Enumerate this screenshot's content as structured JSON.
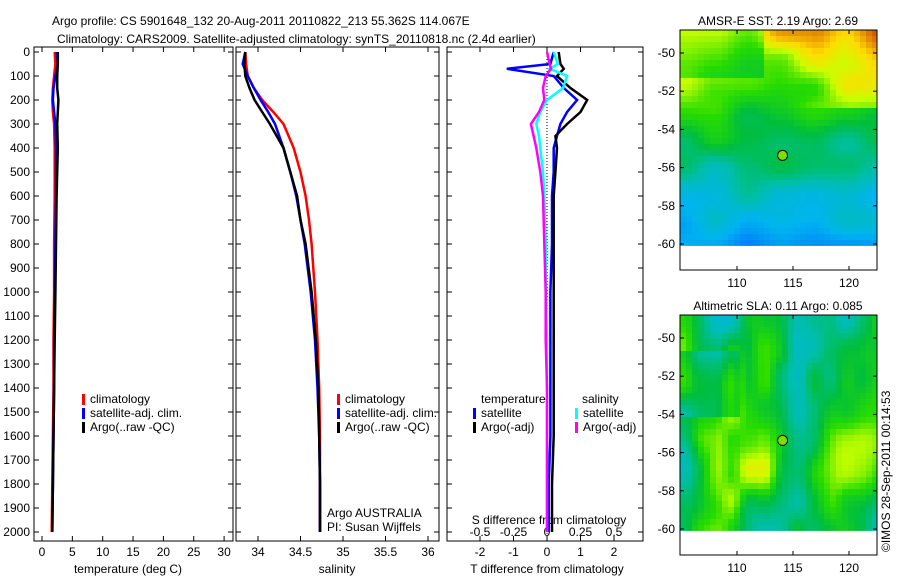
{
  "title": {
    "line1": "Argo profile: CS 5901648_132 20-Aug-2011 20110822_213 55.362S 114.067E",
    "line2": "Climatology: CARS2009. Satellite-adjusted climatology: synTS_20110818.nc (2.4d earlier)"
  },
  "stamp": "©IMOS 28-Sep-2011 00:14:53",
  "colors": {
    "climatology": "#ff0000",
    "satellite": "#0000ff",
    "argo": "#000000",
    "sal_satellite": "#00ffff",
    "sal_argo": "#ff00ff"
  },
  "chart_data": [
    {
      "type": "line",
      "name": "temperature-panel",
      "xlabel": "temperature (deg C)",
      "xlim": [
        -1.5,
        31.5
      ],
      "xticks": [
        "0",
        "5",
        "10",
        "15",
        "20",
        "25",
        "30"
      ],
      "ylim": [
        2040,
        0
      ],
      "yticks": [
        "0",
        "100",
        "200",
        "300",
        "400",
        "500",
        "600",
        "700",
        "800",
        "900",
        "1000",
        "1100",
        "1200",
        "1300",
        "1400",
        "1500",
        "1600",
        "1700",
        "1800",
        "1900",
        "2000"
      ],
      "legend": [
        "climatology",
        "satellite-adj. clim.",
        "Argo(..raw -QC)"
      ],
      "depth": [
        0,
        50,
        100,
        150,
        200,
        250,
        300,
        400,
        500,
        600,
        800,
        1000,
        1200,
        1400,
        1600,
        1800,
        2000
      ],
      "series": [
        {
          "name": "climatology",
          "color": "#ff0000",
          "values": [
            2.1,
            2.2,
            2.0,
            1.8,
            1.7,
            1.8,
            2.0,
            2.1,
            2.1,
            2.1,
            2.0,
            2.0,
            1.9,
            1.9,
            1.8,
            1.7,
            1.6
          ]
        },
        {
          "name": "satellite-adj. clim.",
          "color": "#0000ff",
          "values": [
            2.4,
            2.6,
            2.2,
            1.9,
            1.8,
            2.0,
            2.2,
            2.3,
            2.3,
            2.3,
            2.2,
            2.1,
            2.0,
            2.0,
            1.9,
            1.8,
            1.7
          ]
        },
        {
          "name": "Argo",
          "color": "#000000",
          "values": [
            2.6,
            2.6,
            2.5,
            2.5,
            2.7,
            2.6,
            2.5,
            2.6,
            2.5,
            2.4,
            2.3,
            2.2,
            2.1,
            2.0,
            1.9,
            1.8,
            1.7
          ]
        }
      ]
    },
    {
      "type": "line",
      "name": "salinity-panel",
      "xlabel": "salinity",
      "xlim": [
        33.8,
        36.1
      ],
      "xticks": [
        "34",
        "34.5",
        "35",
        "35.5",
        "36"
      ],
      "ylim": [
        2040,
        0
      ],
      "legend": [
        "climatology",
        "satellite-adj. clim.",
        "Argo(..raw -QC)"
      ],
      "annotation": [
        "Argo AUSTRALIA",
        "PI: Susan Wijffels"
      ],
      "depth": [
        0,
        50,
        100,
        150,
        200,
        250,
        300,
        400,
        500,
        600,
        700,
        800,
        1000,
        1200,
        1400,
        1600,
        1800,
        2000
      ],
      "series": [
        {
          "name": "climatology",
          "color": "#ff0000",
          "values": [
            33.85,
            33.86,
            33.88,
            33.95,
            34.05,
            34.18,
            34.3,
            34.42,
            34.5,
            34.56,
            34.6,
            34.63,
            34.67,
            34.7,
            34.72,
            34.73,
            34.73,
            34.73
          ]
        },
        {
          "name": "satellite-adj. clim.",
          "color": "#0000ff",
          "values": [
            33.85,
            33.82,
            33.88,
            33.95,
            34.03,
            34.12,
            34.2,
            34.3,
            34.38,
            34.45,
            34.5,
            34.55,
            34.62,
            34.67,
            34.7,
            34.72,
            34.73,
            34.73
          ]
        },
        {
          "name": "Argo",
          "color": "#000000",
          "values": [
            33.85,
            33.84,
            33.85,
            33.9,
            33.96,
            34.05,
            34.14,
            34.3,
            34.38,
            34.46,
            34.5,
            34.56,
            34.63,
            34.68,
            34.71,
            34.72,
            34.73,
            34.73
          ]
        }
      ]
    },
    {
      "type": "line",
      "name": "difference-panel",
      "xlabel": "T difference from climatology",
      "xlabel2": "S difference from climatology",
      "xlim": [
        -2.9,
        2.5
      ],
      "xticks": [
        "-2",
        "-1",
        "0",
        "1",
        "2"
      ],
      "xticks2": [
        "-0.5",
        "-0.25",
        "0",
        "0.25",
        "0.5"
      ],
      "ylim": [
        2040,
        0
      ],
      "legend_heads": [
        "temperature",
        "salinity"
      ],
      "legend": [
        "satellite",
        "Argo(-adj)",
        "satellite",
        "Argo(-adj)"
      ],
      "depth": [
        0,
        50,
        70,
        100,
        150,
        200,
        250,
        300,
        350,
        400,
        500,
        600,
        800,
        1000,
        1200,
        1400,
        1600,
        1800,
        2000
      ],
      "series": [
        {
          "name": "T satellite",
          "color": "#0000ff",
          "values": [
            0.2,
            0.1,
            -1.2,
            0.2,
            0.5,
            0.9,
            0.6,
            0.4,
            0.3,
            0.2,
            0.2,
            0.15,
            0.15,
            0.1,
            0.1,
            0.1,
            0.1,
            0.05,
            0.05
          ]
        },
        {
          "name": "T Argo(-adj)",
          "color": "#000000",
          "values": [
            0.35,
            0.4,
            0.5,
            0.3,
            0.7,
            1.2,
            1.0,
            0.6,
            0.25,
            0.3,
            0.25,
            0.2,
            0.2,
            0.2,
            0.2,
            0.2,
            0.2,
            0.15,
            0.15
          ]
        },
        {
          "name": "S satellite",
          "color": "#00ffff",
          "values": [
            0.05,
            0.08,
            0.02,
            0.15,
            0.12,
            0.0,
            -0.05,
            -0.08,
            -0.06,
            -0.05,
            -0.03,
            -0.02,
            -0.01,
            -0.01,
            0.0,
            0.0,
            0.0,
            0.0,
            0.0
          ]
        },
        {
          "name": "S Argo(-adj)",
          "color": "#ff00ff",
          "values": [
            0.0,
            0.02,
            0.03,
            -0.01,
            -0.03,
            -0.02,
            -0.06,
            -0.12,
            -0.1,
            -0.08,
            -0.05,
            -0.03,
            -0.02,
            -0.01,
            -0.01,
            0.0,
            0.0,
            0.0,
            0.0
          ]
        }
      ]
    },
    {
      "type": "heatmap",
      "name": "sst-map",
      "title": "AMSR-E SST: 2.19 Argo: 2.69",
      "xlim": [
        104.9,
        122.5
      ],
      "ylim": [
        -61.3,
        -48.8
      ],
      "xticks": [
        "110",
        "115",
        "120"
      ],
      "yticks": [
        "-50",
        "-52",
        "-54",
        "-56",
        "-58",
        "-60"
      ],
      "marker": {
        "lon": 114.067,
        "lat": -55.362
      }
    },
    {
      "type": "heatmap",
      "name": "sla-map",
      "title": "Altimetric SLA: 0.11 Argo: 0.085",
      "xlim": [
        104.9,
        122.5
      ],
      "ylim": [
        -61.3,
        -48.8
      ],
      "xticks": [
        "110",
        "115",
        "120"
      ],
      "yticks": [
        "-50",
        "-52",
        "-54",
        "-56",
        "-58",
        "-60"
      ],
      "marker": {
        "lon": 114.067,
        "lat": -55.362
      }
    }
  ]
}
